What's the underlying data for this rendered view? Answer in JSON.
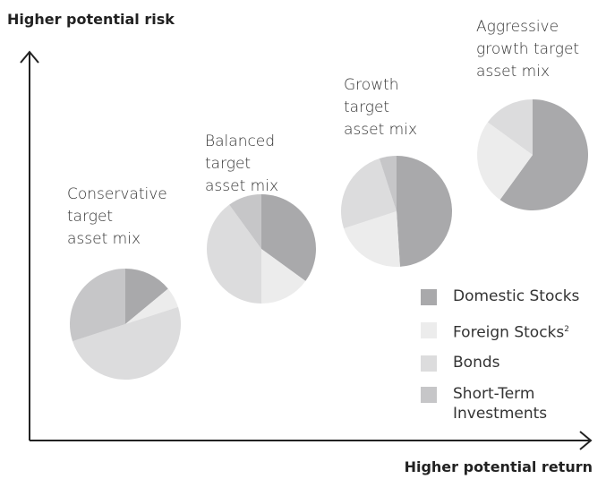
{
  "y_label": "Higher potential risk",
  "x_label": "Higher potential return",
  "legend": [
    {
      "name": "Domestic Stocks",
      "color": "#a9a9ab"
    },
    {
      "name": "Foreign Stocks",
      "footnote": "2",
      "color": "#ececec"
    },
    {
      "name": "Bonds",
      "color": "#dcdcdd"
    },
    {
      "name": "Short-Term Investments",
      "color": "#c6c6c8"
    }
  ],
  "chart_data": [
    {
      "type": "pie",
      "title_lines": [
        "Conservative",
        "target",
        "asset mix"
      ],
      "values": [
        14,
        6,
        50,
        30
      ]
    },
    {
      "type": "pie",
      "title_lines": [
        "Balanced",
        "target",
        "asset mix"
      ],
      "values": [
        35,
        15,
        40,
        10
      ]
    },
    {
      "type": "pie",
      "title_lines": [
        "Growth",
        "target",
        "asset mix"
      ],
      "values": [
        49,
        21,
        25,
        5
      ]
    },
    {
      "type": "pie",
      "title_lines": [
        "Aggressive",
        "growth target",
        "asset mix"
      ],
      "values": [
        60,
        25,
        15,
        0
      ]
    }
  ]
}
